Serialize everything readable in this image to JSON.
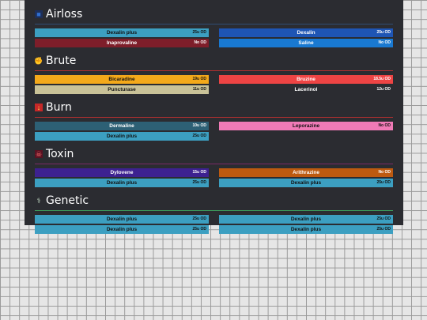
{
  "sections": [
    {
      "title": "Airloss",
      "icon": "lungs-icon",
      "line_color": "#2f4d75",
      "rows": [
        {
          "name": "Dexalin plus",
          "od": "25u OD",
          "color": "#3c9fc1",
          "dark": true
        },
        {
          "name": "Dexalin",
          "od": "25u OD",
          "color": "#1e55b4",
          "dark": false
        },
        {
          "name": "Inaprovaline",
          "od": "No OD",
          "color": "#7e1e2a",
          "dark": false
        },
        {
          "name": "Saline",
          "od": "No OD",
          "color": "#1979d1",
          "dark": false
        }
      ]
    },
    {
      "title": "Brute",
      "icon": "fist-icon",
      "line_color": "#b33030",
      "rows": [
        {
          "name": "Bicaradine",
          "od": "19u OD",
          "color": "#f4a91a",
          "dark": true
        },
        {
          "name": "Bruzine",
          "od": "18.5u OD",
          "color": "#ee4444",
          "dark": false
        },
        {
          "name": "Puncturase",
          "od": "11u OD",
          "color": "#c9c298",
          "dark": true
        },
        {
          "name": "Lacerinol",
          "od": "12u OD",
          "color": "#2b2c31",
          "dark": false
        }
      ]
    },
    {
      "title": "Burn",
      "icon": "flame-icon",
      "line_color": "#b33030",
      "rows": [
        {
          "name": "Dermaline",
          "od": "10u OD",
          "color": "#2d6075",
          "dark": false
        },
        {
          "name": "Leporazine",
          "od": "No OD",
          "color": "#f07ab6",
          "dark": true
        },
        {
          "name": "Dexalin plus",
          "od": "25u OD",
          "color": "#3c9fc1",
          "dark": true
        },
        null
      ]
    },
    {
      "title": "Toxin",
      "icon": "skull-icon",
      "line_color": "#7a2a66",
      "rows": [
        {
          "name": "Dylovene",
          "od": "15u OD",
          "color": "#3d2190",
          "dark": false
        },
        {
          "name": "Arithrazine",
          "od": "No OD",
          "color": "#bd5a10",
          "dark": false
        },
        {
          "name": "Dexalin plus",
          "od": "25u OD",
          "color": "#3c9fc1",
          "dark": true
        },
        {
          "name": "Dexalin plus",
          "od": "25u OD",
          "color": "#3c9fc1",
          "dark": true
        }
      ]
    },
    {
      "title": "Genetic",
      "icon": "dna-icon",
      "line_color": "#3c9c5c",
      "rows": [
        {
          "name": "Dexalin plus",
          "od": "25u OD",
          "color": "#3c9fc1",
          "dark": true
        },
        {
          "name": "Dexalin plus",
          "od": "25u OD",
          "color": "#3c9fc1",
          "dark": true
        },
        {
          "name": "Dexalin plus",
          "od": "25u OD",
          "color": "#3c9fc1",
          "dark": true
        },
        {
          "name": "Dexalin plus",
          "od": "25u OD",
          "color": "#3c9fc1",
          "dark": true
        }
      ]
    }
  ]
}
